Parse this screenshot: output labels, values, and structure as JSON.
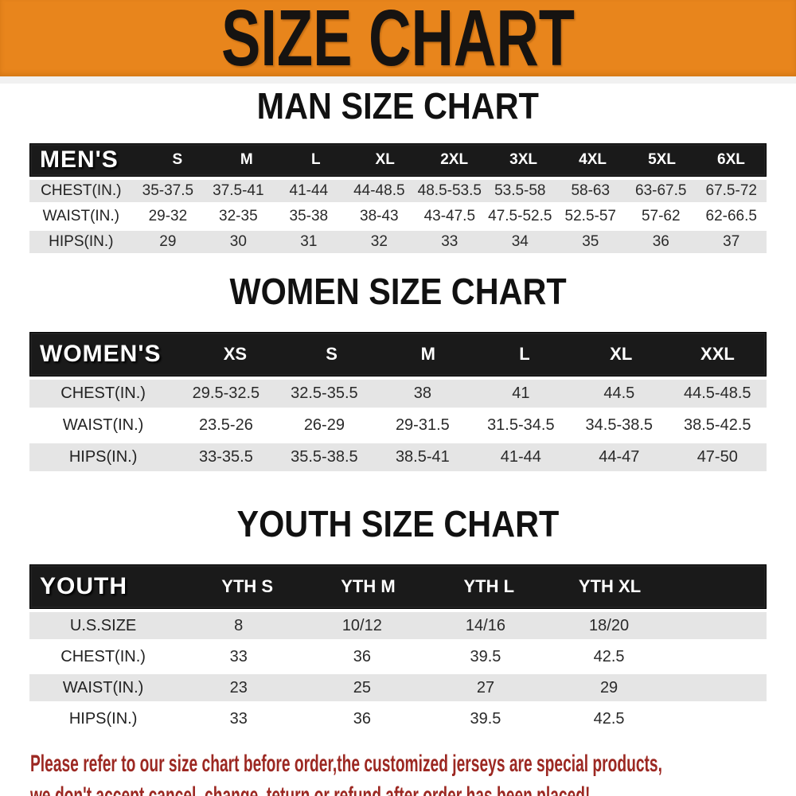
{
  "banner": {
    "title": "SIZE CHART"
  },
  "colors": {
    "banner_bg": "#e8851c",
    "table_header_bg": "#1a1a1a",
    "row_alt_bg": "#e5e5e5",
    "footer_text": "#9c2822"
  },
  "sections": [
    {
      "title": "MAN SIZE CHART",
      "header_label": "MEN'S",
      "columns": [
        "S",
        "M",
        "L",
        "XL",
        "2XL",
        "3XL",
        "4XL",
        "5XL",
        "6XL"
      ],
      "rows": [
        {
          "label": "CHEST(IN.)",
          "values": [
            "35-37.5",
            "37.5-41",
            "41-44",
            "44-48.5",
            "48.5-53.5",
            "53.5-58",
            "58-63",
            "63-67.5",
            "67.5-72"
          ]
        },
        {
          "label": "WAIST(IN.)",
          "values": [
            "29-32",
            "32-35",
            "35-38",
            "38-43",
            "43-47.5",
            "47.5-52.5",
            "52.5-57",
            "57-62",
            "62-66.5"
          ]
        },
        {
          "label": "HIPS(IN.)",
          "values": [
            "29",
            "30",
            "31",
            "32",
            "33",
            "34",
            "35",
            "36",
            "37"
          ]
        }
      ],
      "trailing_blank": false
    },
    {
      "title": "WOMEN SIZE CHART",
      "header_label": "WOMEN'S",
      "columns": [
        "XS",
        "S",
        "M",
        "L",
        "XL",
        "XXL"
      ],
      "rows": [
        {
          "label": "CHEST(IN.)",
          "values": [
            "29.5-32.5",
            "32.5-35.5",
            "38",
            "41",
            "44.5",
            "44.5-48.5"
          ]
        },
        {
          "label": "WAIST(IN.)",
          "values": [
            "23.5-26",
            "26-29",
            "29-31.5",
            "31.5-34.5",
            "34.5-38.5",
            "38.5-42.5"
          ]
        },
        {
          "label": "HIPS(IN.)",
          "values": [
            "33-35.5",
            "35.5-38.5",
            "38.5-41",
            "41-44",
            "44-47",
            "47-50"
          ]
        }
      ],
      "trailing_blank": false
    },
    {
      "title": "YOUTH SIZE CHART",
      "header_label": "YOUTH",
      "columns": [
        "YTH S",
        "YTH M",
        "YTH L",
        "YTH XL"
      ],
      "rows": [
        {
          "label": "U.S.SIZE",
          "values": [
            "8",
            "10/12",
            "14/16",
            "18/20"
          ]
        },
        {
          "label": "CHEST(IN.)",
          "values": [
            "33",
            "36",
            "39.5",
            "42.5"
          ]
        },
        {
          "label": "WAIST(IN.)",
          "values": [
            "23",
            "25",
            "27",
            "29"
          ]
        },
        {
          "label": "HIPS(IN.)",
          "values": [
            "33",
            "36",
            "39.5",
            "42.5"
          ]
        }
      ],
      "trailing_blank": true
    }
  ],
  "footer": {
    "line1": "Please refer to our size chart before order,the customized jerseys are special products,",
    "line2": "we don't accept cancel, change, teturn or refund after order has been placed!"
  }
}
